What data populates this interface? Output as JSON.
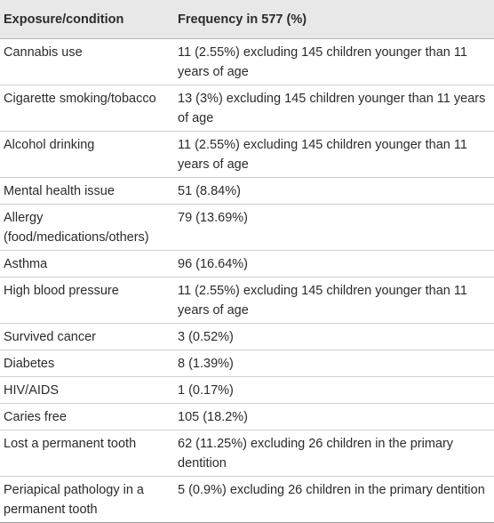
{
  "header": {
    "col1": "Exposure/condition",
    "col2": "Frequency in 577 (%)"
  },
  "rows": [
    {
      "condition": "Cannabis use",
      "frequency": "11 (2.55%) excluding 145 children younger than 11 years of age"
    },
    {
      "condition": "Cigarette smoking/tobacco",
      "frequency": "13 (3%) excluding 145 children younger than 11 years of age"
    },
    {
      "condition": "Alcohol drinking",
      "frequency": "11 (2.55%) excluding 145 children younger than 11 years of age"
    },
    {
      "condition": "Mental health issue",
      "frequency": "51 (8.84%)"
    },
    {
      "condition": "Allergy (food/medications/others)",
      "frequency": "79 (13.69%)"
    },
    {
      "condition": "Asthma",
      "frequency": "96 (16.64%)"
    },
    {
      "condition": "High blood pressure",
      "frequency": "11 (2.55%) excluding 145 children younger than 11 years of age"
    },
    {
      "condition": "Survived cancer",
      "frequency": "3 (0.52%)"
    },
    {
      "condition": "Diabetes",
      "frequency": "8 (1.39%)"
    },
    {
      "condition": "HIV/AIDS",
      "frequency": "1 (0.17%)"
    },
    {
      "condition": "Caries free",
      "frequency": "105 (18.2%)"
    },
    {
      "condition": "Lost a permanent tooth",
      "frequency": "62 (11.25%) excluding 26 children in the primary dentition"
    },
    {
      "condition": "Periapical pathology in a permanent tooth",
      "frequency": "5 (0.9%) excluding 26 children in the primary dentition"
    }
  ]
}
